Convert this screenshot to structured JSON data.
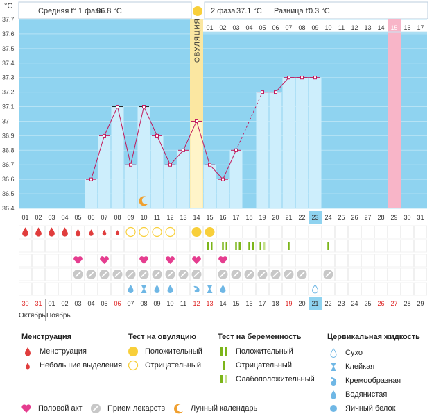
{
  "header": {
    "unit": "°C",
    "phase1_label": "Средняя t° 1 фаза",
    "phase1_value": "36.8 °C",
    "phase2_label": "2 фаза",
    "phase2_value": "37.1 °C",
    "diff_label": "Разница t°",
    "diff_value": "0.3 °C",
    "ovulation_label": "ОВУЛЯЦИЯ"
  },
  "chart_data": {
    "type": "bar",
    "title": "",
    "ylabel": "°C",
    "ylim": [
      36.4,
      37.7
    ],
    "yticks": [
      "36.4",
      "36.5",
      "36.6",
      "36.7",
      "36.8",
      "36.9",
      "37",
      "37.1",
      "37.2",
      "37.3",
      "37.4",
      "37.5",
      "37.6",
      "37.7"
    ],
    "categories": [
      "01",
      "02",
      "03",
      "04",
      "05",
      "06",
      "07",
      "08",
      "09",
      "10",
      "11",
      "12",
      "13",
      "14",
      "15",
      "16",
      "17",
      "18",
      "19",
      "20",
      "21",
      "22",
      "23",
      "24",
      "25",
      "26",
      "27",
      "28",
      "29",
      "30",
      "31"
    ],
    "temperatures": [
      null,
      null,
      null,
      null,
      null,
      36.6,
      36.9,
      37.1,
      36.7,
      37.1,
      36.9,
      36.7,
      36.8,
      37.0,
      36.7,
      36.6,
      36.8,
      null,
      37.2,
      37.2,
      37.3,
      37.3,
      37.3,
      null,
      null,
      null,
      null,
      null,
      null,
      null,
      null
    ],
    "ovulation_day": "14",
    "highlight_day": "23",
    "top_labels_after_ovulation": [
      "01",
      "02",
      "03",
      "04",
      "05",
      "06",
      "07",
      "08",
      "09",
      "10",
      "11",
      "12",
      "13",
      "14",
      "15",
      "16",
      "17"
    ],
    "pink_top_label": "15",
    "pink_cycle_day": "29",
    "calendar_dates": [
      "30",
      "31",
      "01",
      "02",
      "03",
      "04",
      "05",
      "06",
      "07",
      "08",
      "09",
      "10",
      "11",
      "12",
      "13",
      "14",
      "15",
      "16",
      "17",
      "18",
      "19",
      "20",
      "21",
      "22",
      "23",
      "24",
      "25",
      "26",
      "27",
      "28",
      "29"
    ],
    "calendar_highlight": "21",
    "month_left": "Октябрь",
    "month_right": "Ноябрь"
  },
  "legend": {
    "menstruation": {
      "title": "Менструация",
      "items": [
        "Менструация",
        "Небольшие выделения"
      ]
    },
    "ovulation_test": {
      "title": "Тест на овуляцию",
      "items": [
        "Положительный",
        "Отрицательный"
      ]
    },
    "pregnancy_test": {
      "title": "Тест на беременность",
      "items": [
        "Положительный",
        "Отрицательный",
        "Слабоположительный"
      ]
    },
    "cervical": {
      "title": "Цервикальная жидкость",
      "items": [
        "Сухо",
        "Клейкая",
        "Кремообразная",
        "Водянистая",
        "Яичный белок"
      ]
    },
    "bottom": [
      "Половой акт",
      "Прием лекарств",
      "Лунный календарь"
    ]
  },
  "colors": {
    "sky": "#8fd3f0",
    "bar": "#cdeefc",
    "ovulation": "#fbe7a1",
    "pink": "#f8b5c8",
    "line": "#c2185b",
    "red": "#e03c3c",
    "yellow": "#f8cf3a",
    "green": "#7cb51a",
    "pill": "#c8c8c8",
    "drop": "#6fb7e5"
  }
}
